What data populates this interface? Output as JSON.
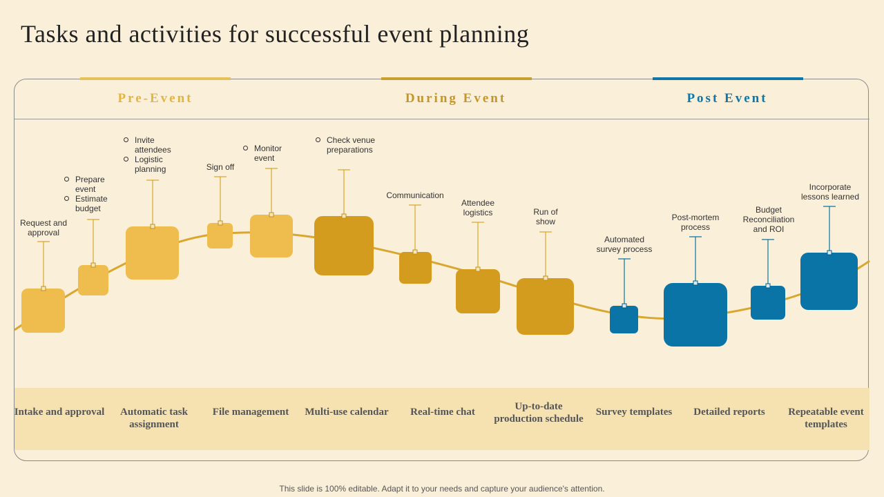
{
  "title": "Tasks and activities for successful event planning",
  "phases": [
    {
      "label": "Pre-Event",
      "color": "#e6b93f"
    },
    {
      "label": "During Event",
      "color": "#d4a020"
    },
    {
      "label": "Post Event",
      "color": "#0e76a8"
    }
  ],
  "activities": {
    "request_approval": "Request and approval",
    "prepare_event": "Prepare event",
    "estimate_budget": "Estimate budget",
    "invite_attendees": "Invite attendees",
    "logistic_planning": "Logistic planning",
    "sign_off": "Sign off",
    "monitor_event": "Monitor event",
    "check_venue": "Check venue preparations",
    "communication": "Communication",
    "attendee_logistics": "Attendee logistics",
    "run_of_show": "Run of show",
    "automated_survey": "Automated survey process",
    "post_mortem": "Post-mortem process",
    "budget_reconciliation": "Budget Reconciliation and ROI",
    "incorporate_lessons": "Incorporate lessons learned"
  },
  "tools": [
    "Intake and approval",
    "Automatic task assignment",
    "File management",
    "Multi-use calendar",
    "Real-time chat",
    "Up-to-date production schedule",
    "Survey templates",
    "Detailed reports",
    "Repeatable event templates"
  ],
  "footer": "This slide is 100% editable. Adapt it to your needs and capture your audience's attention.",
  "colors": {
    "background": "#faefd9",
    "pre_event": "#eebd4e",
    "during_event": "#d49c1f",
    "post_event": "#0a74a6",
    "curve": "#d9a62e",
    "band": "#f6e2b0"
  }
}
